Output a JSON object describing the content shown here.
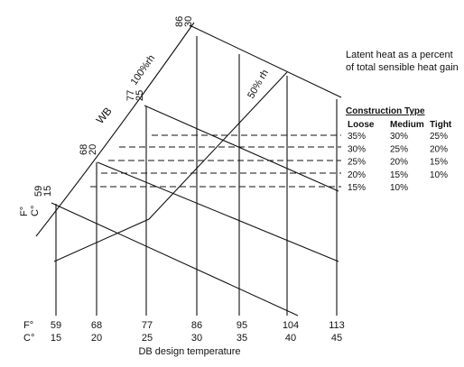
{
  "note": {
    "line1": "Latent heat as a percent",
    "line2": "of total sensible heat gain"
  },
  "table": {
    "title": "Construction Type",
    "headers": [
      "Loose",
      "Medium",
      "Tight"
    ],
    "rows": [
      [
        "35%",
        "30%",
        "25%"
      ],
      [
        "30%",
        "25%",
        "20%"
      ],
      [
        "25%",
        "20%",
        "15%"
      ],
      [
        "20%",
        "15%",
        "10%"
      ],
      [
        "15%",
        "10%",
        ""
      ]
    ]
  },
  "x_axis": {
    "f_unit": "F°",
    "c_unit": "C°",
    "f_labels": [
      "59",
      "68",
      "77",
      "86",
      "95",
      "104",
      "113"
    ],
    "c_labels": [
      "15",
      "20",
      "25",
      "30",
      "35",
      "40",
      "45"
    ],
    "title": "DB design temperature"
  },
  "wet_bulb": {
    "label": "WB",
    "f_unit": "F°",
    "c_unit": "C°",
    "points": [
      {
        "f": "59",
        "c": "15"
      },
      {
        "f": "68",
        "c": "20"
      },
      {
        "f": "77",
        "c": "25"
      },
      {
        "f": "86",
        "c": "30"
      }
    ]
  },
  "curves": {
    "saturation": "100%rh",
    "half": "50% rh"
  }
}
